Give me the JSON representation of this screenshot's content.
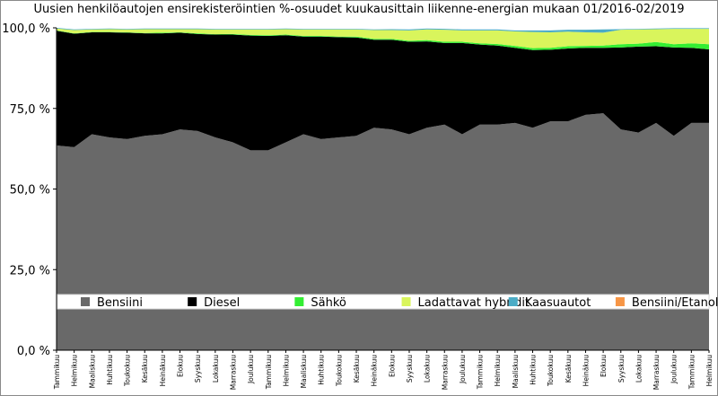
{
  "chart_data": {
    "type": "area",
    "stacked": true,
    "title": "Uusien henkilöautojen ensirekisteröintien %-osuudet kuukausittain liikenne-energian mukaan 01/2016-02/2019",
    "xlabel": "",
    "ylabel": "",
    "ylim": [
      0,
      100
    ],
    "y_ticks": [
      "0,0 %",
      "25,0 %",
      "50,0 %",
      "75,0 %",
      "100,0 %"
    ],
    "grid": false,
    "legend_position": "inside-middle",
    "categories": [
      "Tammikuu",
      "Helmikuu",
      "Maaliskuu",
      "Huhtikuu",
      "Toukokuu",
      "Kesäkuu",
      "Heinäkuu",
      "Elokuu",
      "Syyskuu",
      "Lokakuu",
      "Marraskuu",
      "Joulukuu",
      "Tammikuu",
      "Helmikuu",
      "Maaliskuu",
      "Huhtikuu",
      "Toukokuu",
      "Kesäkuu",
      "Heinäkuu",
      "Elokuu",
      "Syyskuu",
      "Lokakuu",
      "Marraskuu",
      "Joulukuu",
      "Tammikuu",
      "Helmikuu",
      "Maaliskuu",
      "Huhtikuu",
      "Toukokuu",
      "Kesäkuu",
      "Heinäkuu",
      "Elokuu",
      "Syyskuu",
      "Lokakuu",
      "Marraskuu",
      "Joulukuu",
      "Tammikuu",
      "Helmikuu"
    ],
    "series": [
      {
        "name": "Bensiini",
        "color": "#696969",
        "values": [
          63.5,
          63.0,
          67.0,
          66.0,
          65.5,
          66.5,
          67.0,
          68.5,
          68.0,
          66.0,
          64.5,
          62.0,
          62.0,
          64.5,
          67.0,
          65.5,
          66.0,
          66.5,
          69.0,
          68.5,
          67.0,
          69.0,
          70.0,
          67.0,
          70.0,
          70.0,
          70.5,
          69.0,
          71.0,
          71.0,
          73.0,
          73.5,
          68.5,
          67.5,
          70.5,
          66.5,
          70.5,
          70.5
        ]
      },
      {
        "name": "Diesel",
        "color": "#000000",
        "values": [
          35.6,
          35.2,
          31.6,
          32.6,
          33.0,
          31.8,
          31.3,
          30.0,
          30.1,
          31.9,
          33.4,
          35.6,
          35.5,
          33.2,
          30.3,
          31.8,
          31.1,
          30.5,
          27.3,
          27.8,
          28.7,
          26.8,
          25.3,
          28.3,
          24.8,
          24.5,
          23.3,
          24.1,
          22.2,
          22.6,
          20.8,
          20.3,
          25.4,
          26.7,
          23.8,
          27.4,
          23.3,
          22.8
        ]
      },
      {
        "name": "Sähkö",
        "color": "#33ee33",
        "values": [
          0.1,
          0.1,
          0.1,
          0.1,
          0.1,
          0.1,
          0.2,
          0.1,
          0.2,
          0.1,
          0.2,
          0.2,
          0.2,
          0.2,
          0.2,
          0.2,
          0.2,
          0.3,
          0.3,
          0.3,
          0.3,
          0.4,
          0.4,
          0.4,
          0.4,
          0.5,
          0.6,
          0.6,
          0.6,
          0.7,
          0.6,
          0.7,
          1.0,
          0.9,
          1.3,
          1.0,
          1.4,
          1.6
        ]
      },
      {
        "name": "Ladattavat hybridit",
        "color": "#d9f55c",
        "values": [
          0.6,
          1.0,
          0.8,
          0.9,
          0.9,
          1.2,
          1.1,
          1.0,
          1.3,
          1.5,
          1.4,
          1.7,
          1.8,
          1.7,
          2.0,
          2.0,
          2.2,
          2.2,
          2.7,
          2.7,
          3.2,
          3.3,
          3.7,
          3.5,
          4.0,
          4.2,
          4.5,
          5.0,
          4.8,
          4.5,
          4.2,
          4.0,
          4.5,
          4.4,
          4.0,
          4.8,
          4.5,
          4.8
        ]
      },
      {
        "name": "Kaasuautot",
        "color": "#4bacc6",
        "values": [
          0.2,
          0.2,
          0.2,
          0.2,
          0.2,
          0.2,
          0.2,
          0.2,
          0.2,
          0.2,
          0.2,
          0.2,
          0.2,
          0.2,
          0.2,
          0.2,
          0.2,
          0.2,
          0.2,
          0.3,
          0.3,
          0.3,
          0.3,
          0.3,
          0.3,
          0.3,
          0.3,
          0.5,
          0.6,
          0.6,
          0.8,
          1.0,
          0.2,
          0.2,
          0.2,
          0.2,
          0.2,
          0.2
        ]
      },
      {
        "name": "Bensiini/Etanoli",
        "color": "#f79646",
        "values": [
          0,
          0,
          0,
          0,
          0,
          0,
          0,
          0,
          0,
          0,
          0,
          0,
          0,
          0,
          0,
          0,
          0,
          0,
          0,
          0,
          0,
          0,
          0,
          0,
          0,
          0,
          0,
          0,
          0,
          0,
          0,
          0,
          0,
          0,
          0,
          0,
          0,
          0
        ]
      }
    ]
  }
}
